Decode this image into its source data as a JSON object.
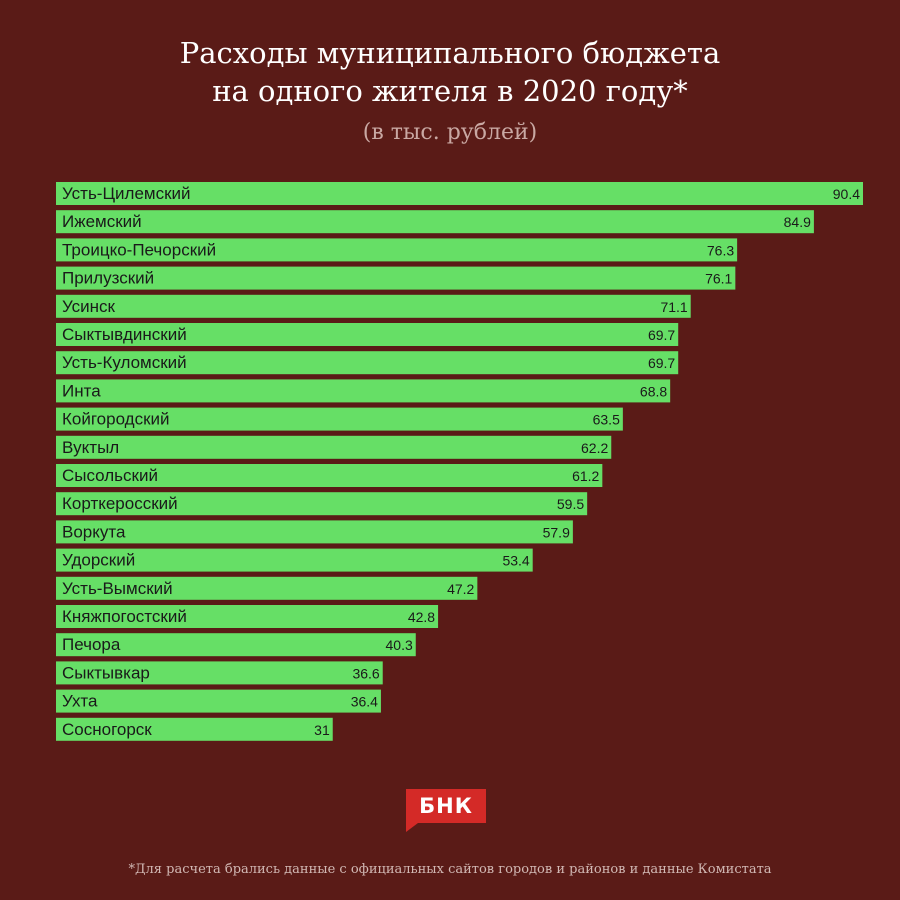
{
  "title_line1": "Расходы муниципального бюджета",
  "title_line2": "на одного жителя в 2020 году*",
  "subtitle": "(в тыс. рублей)",
  "logo_text": "БНК",
  "footnote": "*Для расчета брались данные с официальных сайтов городов и районов и данные Комистата",
  "colors": {
    "background": "#5a1b17",
    "bar": "#66df66",
    "logo": "#d42a27"
  },
  "chart_data": {
    "type": "bar",
    "orientation": "horizontal",
    "title": "Расходы муниципального бюджета на одного жителя в 2020 году*",
    "subtitle": "(в тыс. рублей)",
    "categories": [
      "Усть-Цилемский",
      "Ижемский",
      "Троицко-Печорский",
      "Прилузский",
      "Усинск",
      "Сыктывдинский",
      "Усть-Куломский",
      "Инта",
      "Койгородский",
      "Вуктыл",
      "Сысольский",
      "Корткеросский",
      "Воркута",
      "Удорский",
      "Усть-Вымский",
      "Княжпогостский",
      "Печора",
      "Сыктывкар",
      "Ухта",
      "Сосногорск"
    ],
    "values": [
      90.4,
      84.9,
      76.3,
      76.1,
      71.1,
      69.7,
      69.7,
      68.8,
      63.5,
      62.2,
      61.2,
      59.5,
      57.9,
      53.4,
      47.2,
      42.8,
      40.3,
      36.6,
      36.4,
      31
    ],
    "value_labels": [
      "90.4",
      "84.9",
      "76.3",
      "76.1",
      "71.1",
      "69.7",
      "69.7",
      "68.8",
      "63.5",
      "62.2",
      "61.2",
      "59.5",
      "57.9",
      "53.4",
      "47.2",
      "42.8",
      "40.3",
      "36.6",
      "36.4",
      "31"
    ],
    "xlim": [
      0,
      90.4
    ],
    "grid": false,
    "legend": "none"
  }
}
